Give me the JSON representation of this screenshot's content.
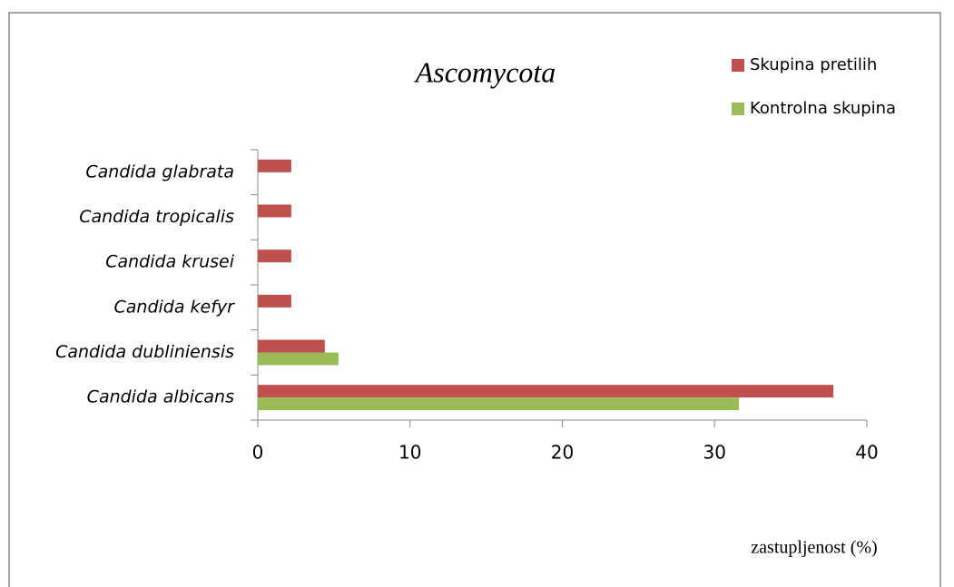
{
  "chart_data": {
    "type": "barh",
    "title": "Ascomycota",
    "categories": [
      "Candida albicans",
      "Candida dubliniensis",
      "Candida kefyr",
      "Candida krusei",
      "Candida tropicalis",
      "Candida glabrata"
    ],
    "series": [
      {
        "name": "Skupina pretilih",
        "color": "#c0504d",
        "values": [
          37.8,
          4.4,
          2.2,
          2.2,
          2.2,
          2.2
        ]
      },
      {
        "name": "Kontrolna skupina",
        "color": "#9bbb59",
        "values": [
          31.6,
          5.3,
          0,
          0,
          0,
          0
        ]
      }
    ],
    "xlabel": "zastupljenost (%)",
    "xlim": [
      0,
      40
    ],
    "xticks": [
      0,
      10,
      20,
      30,
      40
    ],
    "grid": false,
    "legend": "top-right"
  }
}
